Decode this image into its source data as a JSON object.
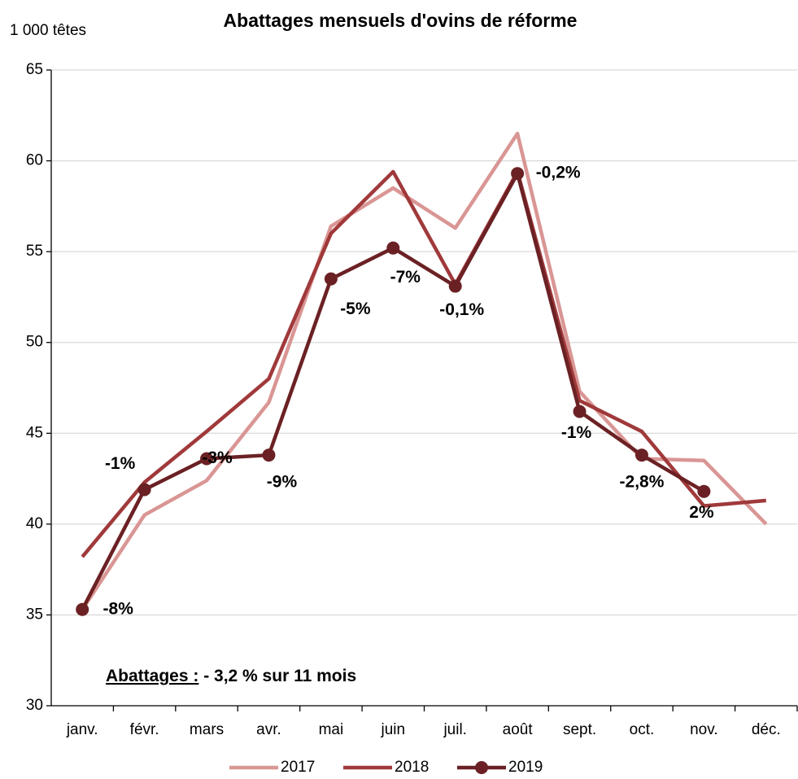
{
  "chart_data": {
    "type": "line",
    "title": "Abattages mensuels d'ovins de réforme",
    "y_label": "1 000 têtes",
    "annotation": {
      "label": "Abattages :",
      "text": " - 3,2 % sur 11 mois"
    },
    "categories": [
      "janv.",
      "févr.",
      "mars",
      "avr.",
      "mai",
      "juin",
      "juil.",
      "août",
      "sept.",
      "oct.",
      "nov.",
      "déc."
    ],
    "series": [
      {
        "name": "2017",
        "color": "#d99694",
        "values": [
          35.3,
          40.5,
          42.4,
          46.7,
          56.4,
          58.5,
          56.3,
          61.5,
          47.3,
          43.6,
          43.5,
          40.0
        ]
      },
      {
        "name": "2018",
        "color": "#a0393a",
        "values": [
          38.2,
          42.3,
          45.1,
          48.0,
          56.0,
          59.4,
          53.2,
          59.4,
          46.8,
          45.1,
          41.0,
          41.3
        ]
      },
      {
        "name": "2019",
        "color": "#6b2124",
        "markers": true,
        "values": [
          35.3,
          41.9,
          43.6,
          43.8,
          53.5,
          55.2,
          53.1,
          59.3,
          46.2,
          43.8,
          41.8,
          null
        ],
        "change_labels": [
          "-8%",
          "-1%",
          "-3%",
          "-9%",
          "-5%",
          "-7%",
          "-0,1%",
          "-0,2%",
          "-1%",
          "-2,8%",
          "2%",
          null
        ]
      }
    ],
    "ylim": [
      30,
      65
    ],
    "yticks": [
      30,
      35,
      40,
      45,
      50,
      55,
      60,
      65
    ],
    "grid": true,
    "legend": "bottom"
  }
}
